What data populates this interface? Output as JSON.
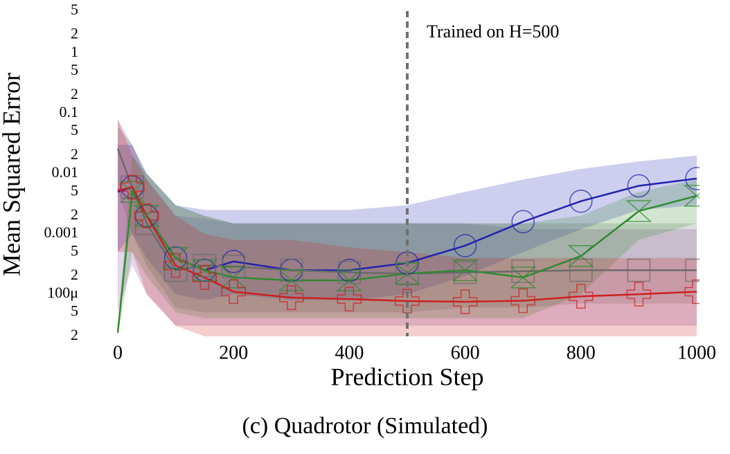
{
  "chart_data": {
    "type": "line",
    "caption": "(c) Quadrotor (Simulated)",
    "xlabel": "Prediction Step",
    "ylabel": "Mean Squared Error",
    "log_y": true,
    "xlim": [
      0,
      1000
    ],
    "xticks": [
      0,
      200,
      400,
      600,
      800,
      1000
    ],
    "ylim": [
      2e-05,
      5
    ],
    "yticks": [
      {
        "value": 2e-05,
        "label": "2"
      },
      {
        "value": 5e-05,
        "label": "5"
      },
      {
        "value": 0.0001,
        "label": "100μ"
      },
      {
        "value": 0.0002,
        "label": "2"
      },
      {
        "value": 0.0005,
        "label": "5"
      },
      0.001,
      {
        "value": 0.002,
        "label": "2"
      },
      {
        "value": 0.005,
        "label": "5"
      },
      0.01,
      {
        "value": 0.02,
        "label": "2"
      },
      {
        "value": 0.05,
        "label": "5"
      },
      0.1,
      {
        "value": 0.2,
        "label": "2"
      },
      {
        "value": 0.5,
        "label": "5"
      },
      1,
      2,
      5
    ],
    "vline": {
      "x": 500,
      "label": "Trained on H=500",
      "color": "#707070"
    },
    "x": [
      0,
      25,
      50,
      100,
      150,
      200,
      300,
      400,
      500,
      600,
      700,
      800,
      900,
      1000
    ],
    "series": [
      {
        "color": "#7f3f9f",
        "marker": "none",
        "band_only": true,
        "values": [
          0.01,
          0.006,
          0.002,
          0.0004,
          0.0003,
          0.00025,
          0.00022,
          0.0002,
          0.0002,
          0.0002,
          0.0002,
          0.0002,
          0.0002,
          0.0002
        ],
        "lower": [
          5e-05,
          0.0003,
          0.0001,
          3e-05,
          3e-05,
          3e-05,
          3e-05,
          3e-05,
          3e-05,
          3e-05,
          3e-05,
          3e-05,
          3e-05,
          3e-05
        ],
        "upper": [
          0.08,
          0.03,
          0.008,
          0.002,
          0.0018,
          0.0015,
          0.0015,
          0.0015,
          0.0015,
          0.0015,
          0.0012,
          0.0012,
          0.0012,
          0.0012
        ]
      },
      {
        "color": "#2222b0",
        "marker": "circle",
        "values": [
          0.005,
          0.006,
          0.002,
          0.0004,
          0.00025,
          0.00035,
          0.00025,
          0.00025,
          0.00033,
          0.00064,
          0.0016,
          0.0035,
          0.0063,
          0.0083
        ],
        "lower": [
          0.0005,
          0.001,
          0.0004,
          0.0001,
          8e-05,
          0.0001,
          8e-05,
          8e-05,
          0.0001,
          0.0002,
          0.0005,
          0.0012,
          0.0025,
          0.003
        ],
        "upper": [
          0.03,
          0.03,
          0.01,
          0.003,
          0.0025,
          0.0025,
          0.0025,
          0.0025,
          0.003,
          0.005,
          0.008,
          0.012,
          0.016,
          0.02
        ]
      },
      {
        "color": "#6a6a6a",
        "marker": "square",
        "values": [
          0.026,
          0.006,
          0.0015,
          0.00025,
          0.0003,
          0.00029,
          0.00025,
          0.00023,
          0.00022,
          0.00023,
          0.00024,
          0.00025,
          0.00025,
          0.00025
        ],
        "lower": [
          0.005,
          0.001,
          0.0003,
          6e-05,
          5e-05,
          5e-05,
          5e-05,
          5e-05,
          5e-05,
          6e-05,
          6e-05,
          7e-05,
          7e-05,
          7e-05
        ],
        "upper": [
          0.06,
          0.03,
          0.01,
          0.003,
          0.002,
          0.0015,
          0.0015,
          0.0015,
          0.0015,
          0.0015,
          0.0015,
          0.0015,
          0.0015,
          0.0015
        ]
      },
      {
        "color": "#2f8a2f",
        "marker": "hourglass",
        "values": [
          2.3e-05,
          0.005,
          0.002,
          0.0004,
          0.00025,
          0.00019,
          0.00017,
          0.00017,
          0.00022,
          0.00025,
          0.00019,
          0.00043,
          0.0024,
          0.0043
        ],
        "lower": [
          2e-05,
          0.0005,
          0.0002,
          5e-05,
          4e-05,
          4e-05,
          4e-05,
          4e-05,
          4e-05,
          4e-05,
          4e-05,
          0.0001,
          0.0008,
          0.0015
        ],
        "upper": [
          3e-05,
          0.02,
          0.01,
          0.003,
          0.002,
          0.0015,
          0.0015,
          0.0015,
          0.0015,
          0.0015,
          0.0015,
          0.002,
          0.005,
          0.008
        ]
      },
      {
        "color": "#cc2020",
        "marker": "cross",
        "values": [
          0.0053,
          0.006,
          0.002,
          0.0003,
          0.00019,
          0.00011,
          8.8e-05,
          8.3e-05,
          7.7e-05,
          7.5e-05,
          7.8e-05,
          9.2e-05,
          0.0001,
          0.00011
        ],
        "lower": [
          0.0005,
          0.0005,
          0.0001,
          3e-05,
          2e-05,
          2e-05,
          2e-05,
          2e-05,
          2e-05,
          2e-05,
          2e-05,
          2e-05,
          2e-05,
          2e-05
        ],
        "upper": [
          0.08,
          0.02,
          0.008,
          0.002,
          0.001,
          0.0008,
          0.0008,
          0.0006,
          0.0005,
          0.0004,
          0.0004,
          0.0004,
          0.0004,
          0.0004
        ]
      }
    ]
  }
}
